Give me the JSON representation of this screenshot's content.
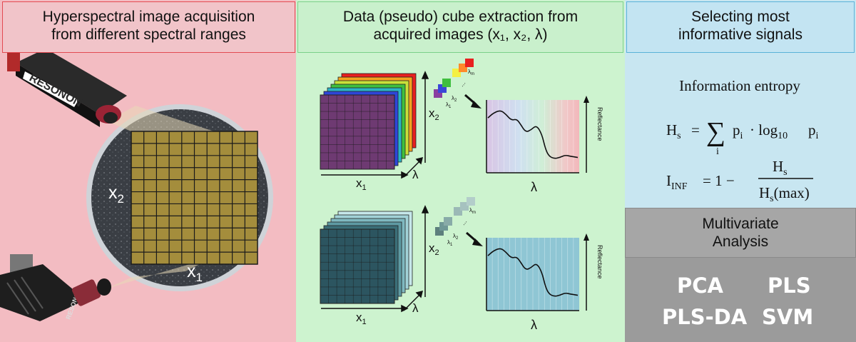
{
  "panels": {
    "acquisition": {
      "title_line1": "Hyperspectral image acquisition",
      "title_line2": "from different spectral ranges",
      "camera_brand": "RESONON",
      "camera_brand_small": "RESONON",
      "axis_x": "x",
      "axis_x_sub": "1",
      "axis_y": "x",
      "axis_y_sub": "2"
    },
    "extraction": {
      "title_line1": "Data (pseudo) cube extraction from",
      "title_line2": "acquired images (x₁, x₂, λ)",
      "cube_x": "x",
      "cube_x_sub": "1",
      "cube_y": "x",
      "cube_y_sub": "2",
      "cube_lambda": "λ",
      "band_first": "λ",
      "band_first_sub": "1",
      "band_second": "λ",
      "band_second_sub": "2",
      "band_last": "λ",
      "band_last_sub": "m",
      "band_dots": "...",
      "plot_ylabel": "Reflectance",
      "plot_xlabel": "λ"
    },
    "selection": {
      "title_line1": "Selecting most",
      "title_line2": "informative signals",
      "entropy_title": "Information entropy",
      "eq1_lhs": "H",
      "eq1_lhs_sub": "s",
      "eq1_eq": "=",
      "eq1_sum": "∑",
      "eq1_sum_sub": "i",
      "eq1_term": "p",
      "eq1_term_sub": "i",
      "eq1_dot": "· log",
      "eq1_log_sub": "10",
      "eq1_p2": "p",
      "eq1_p2_sub": "i",
      "eq2_lhs": "I",
      "eq2_lhs_sub": "INF",
      "eq2_eq": "= 1 −",
      "eq2_num": "H",
      "eq2_num_sub": "s",
      "eq2_den": "H",
      "eq2_den_sub": "s",
      "eq2_den_tail": "(max)"
    },
    "analysis": {
      "title_line1": "Multivariate",
      "title_line2": "Analysis",
      "methods": [
        "PCA",
        "PLS",
        "PLS-DA",
        "SVM"
      ]
    }
  },
  "colors": {
    "panel1_bg": "#f3bcc2",
    "panel2_bg": "#cdf3cf",
    "panel3_bg": "#c8e6f1",
    "sample_grid": "#a48d3c",
    "cube_top_face": "#6e3a72",
    "cube_bottom_face": "#2c5560"
  }
}
